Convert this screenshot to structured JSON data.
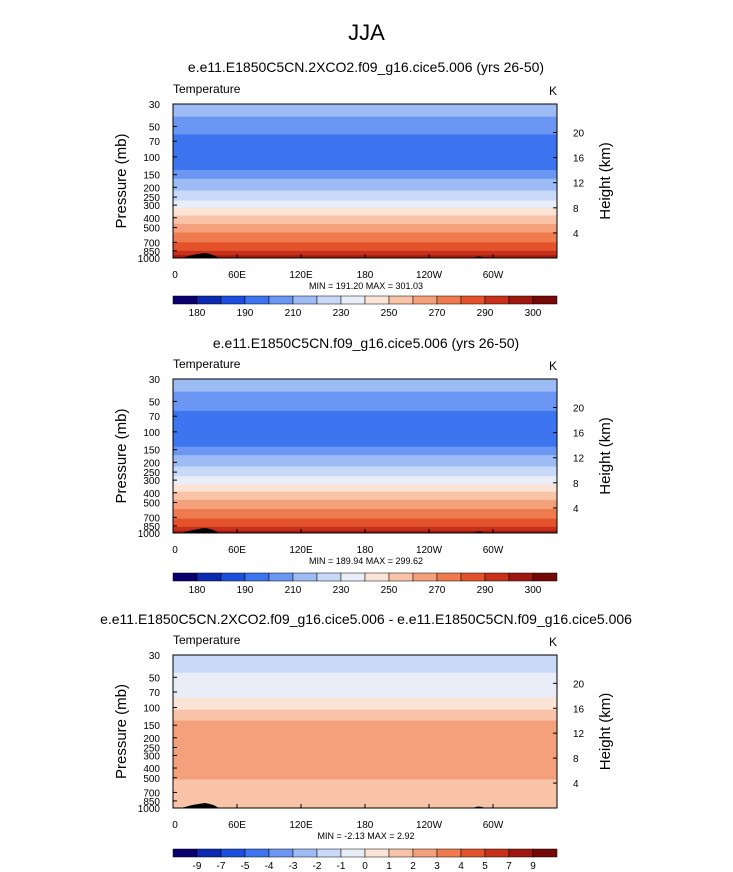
{
  "page": {
    "title": "JJA"
  },
  "scales": {
    "absolute": {
      "colors": [
        "#08006e",
        "#0a2bb0",
        "#1c4fdd",
        "#3d74f0",
        "#6b96f3",
        "#9dbcf6",
        "#c7d9f7",
        "#e8edf7",
        "#fbe4d6",
        "#f8c3a6",
        "#f4a07b",
        "#ef7a4e",
        "#e4522b",
        "#c7301b",
        "#9f1810",
        "#760808"
      ],
      "labels": [
        "180",
        "190",
        "210",
        "230",
        "250",
        "270",
        "290",
        "300"
      ]
    },
    "difference": {
      "colors": [
        "#08006e",
        "#0a2bb0",
        "#1c4fdd",
        "#3d74f0",
        "#6b96f3",
        "#9dbcf6",
        "#c7d9f7",
        "#e8edf7",
        "#fbe4d6",
        "#f8c3a6",
        "#f4a07b",
        "#ef7a4e",
        "#e4522b",
        "#c7301b",
        "#9f1810",
        "#760808"
      ],
      "labels": [
        "-9",
        "-7",
        "-5",
        "-4",
        "-3",
        "-2",
        "-1",
        "0",
        "1",
        "2",
        "3",
        "4",
        "5",
        "7",
        "9"
      ]
    }
  },
  "chart_data": [
    {
      "type": "heatmap",
      "title": "e.e11.E1850C5CN.2XCO2.f09_g16.cice5.006 (yrs 26-50)",
      "left_label": "Temperature",
      "right_label": "K",
      "ylabel": "Pressure (mb)",
      "y2label": "Height (km)",
      "x_ticks": [
        "0",
        "60E",
        "120E",
        "180",
        "120W",
        "60W"
      ],
      "y_ticks": [
        "30",
        "50",
        "70",
        "100",
        "150",
        "200",
        "250",
        "300",
        "400",
        "500",
        "700",
        "850",
        "1000"
      ],
      "y2_ticks": [
        "20",
        "16",
        "12",
        "8",
        "4"
      ],
      "stats": "MIN = 191.20   MAX = 301.03",
      "scale": "absolute",
      "bands": [
        {
          "p_top": 30,
          "p_bot": 40,
          "color": "#9dbcf6"
        },
        {
          "p_top": 40,
          "p_bot": 60,
          "color": "#6b96f3"
        },
        {
          "p_top": 60,
          "p_bot": 135,
          "color": "#3d74f0"
        },
        {
          "p_top": 135,
          "p_bot": 165,
          "color": "#6b96f3"
        },
        {
          "p_top": 165,
          "p_bot": 215,
          "color": "#9dbcf6"
        },
        {
          "p_top": 215,
          "p_bot": 270,
          "color": "#c7d9f7"
        },
        {
          "p_top": 270,
          "p_bot": 320,
          "color": "#e8edf7"
        },
        {
          "p_top": 320,
          "p_bot": 380,
          "color": "#fbe4d6"
        },
        {
          "p_top": 380,
          "p_bot": 460,
          "color": "#f8c3a6"
        },
        {
          "p_top": 460,
          "p_bot": 560,
          "color": "#f4a07b"
        },
        {
          "p_top": 560,
          "p_bot": 700,
          "color": "#ef7a4e"
        },
        {
          "p_top": 700,
          "p_bot": 850,
          "color": "#e4522b"
        },
        {
          "p_top": 850,
          "p_bot": 940,
          "color": "#c7301b"
        },
        {
          "p_top": 940,
          "p_bot": 1000,
          "color": "#9f1810"
        }
      ]
    },
    {
      "type": "heatmap",
      "title": "e.e11.E1850C5CN.f09_g16.cice5.006 (yrs 26-50)",
      "left_label": "Temperature",
      "right_label": "K",
      "ylabel": "Pressure (mb)",
      "y2label": "Height (km)",
      "x_ticks": [
        "0",
        "60E",
        "120E",
        "180",
        "120W",
        "60W"
      ],
      "y_ticks": [
        "30",
        "50",
        "70",
        "100",
        "150",
        "200",
        "250",
        "300",
        "400",
        "500",
        "700",
        "850",
        "1000"
      ],
      "y2_ticks": [
        "20",
        "16",
        "12",
        "8",
        "4"
      ],
      "stats": "MIN = 189.94   MAX = 299.62",
      "scale": "absolute",
      "bands": [
        {
          "p_top": 30,
          "p_bot": 40,
          "color": "#9dbcf6"
        },
        {
          "p_top": 40,
          "p_bot": 62,
          "color": "#6b96f3"
        },
        {
          "p_top": 62,
          "p_bot": 140,
          "color": "#3d74f0"
        },
        {
          "p_top": 140,
          "p_bot": 170,
          "color": "#6b96f3"
        },
        {
          "p_top": 170,
          "p_bot": 220,
          "color": "#9dbcf6"
        },
        {
          "p_top": 220,
          "p_bot": 275,
          "color": "#c7d9f7"
        },
        {
          "p_top": 275,
          "p_bot": 330,
          "color": "#e8edf7"
        },
        {
          "p_top": 330,
          "p_bot": 390,
          "color": "#fbe4d6"
        },
        {
          "p_top": 390,
          "p_bot": 470,
          "color": "#f8c3a6"
        },
        {
          "p_top": 470,
          "p_bot": 580,
          "color": "#f4a07b"
        },
        {
          "p_top": 580,
          "p_bot": 720,
          "color": "#ef7a4e"
        },
        {
          "p_top": 720,
          "p_bot": 870,
          "color": "#e4522b"
        },
        {
          "p_top": 870,
          "p_bot": 950,
          "color": "#c7301b"
        },
        {
          "p_top": 950,
          "p_bot": 1000,
          "color": "#9f1810"
        }
      ]
    },
    {
      "type": "heatmap",
      "title": "e.e11.E1850C5CN.2XCO2.f09_g16.cice5.006 - e.e11.E1850C5CN.f09_g16.cice5.006",
      "left_label": "Temperature",
      "right_label": "K",
      "ylabel": "Pressure (mb)",
      "y2label": "Height (km)",
      "x_ticks": [
        "0",
        "60E",
        "120E",
        "180",
        "120W",
        "60W"
      ],
      "y_ticks": [
        "30",
        "50",
        "70",
        "100",
        "150",
        "200",
        "250",
        "300",
        "400",
        "500",
        "700",
        "850",
        "1000"
      ],
      "y2_ticks": [
        "20",
        "16",
        "12",
        "8",
        "4"
      ],
      "stats": "MIN = -2.13   MAX =  2.92",
      "scale": "difference",
      "bands": [
        {
          "p_top": 30,
          "p_bot": 45,
          "color": "#c7d9f7"
        },
        {
          "p_top": 45,
          "p_bot": 80,
          "color": "#e8edf7"
        },
        {
          "p_top": 80,
          "p_bot": 105,
          "color": "#fbe4d6"
        },
        {
          "p_top": 105,
          "p_bot": 135,
          "color": "#f8c3a6"
        },
        {
          "p_top": 135,
          "p_bot": 520,
          "color": "#f4a07b"
        },
        {
          "p_top": 520,
          "p_bot": 1000,
          "color": "#f8c3a6"
        }
      ]
    }
  ]
}
